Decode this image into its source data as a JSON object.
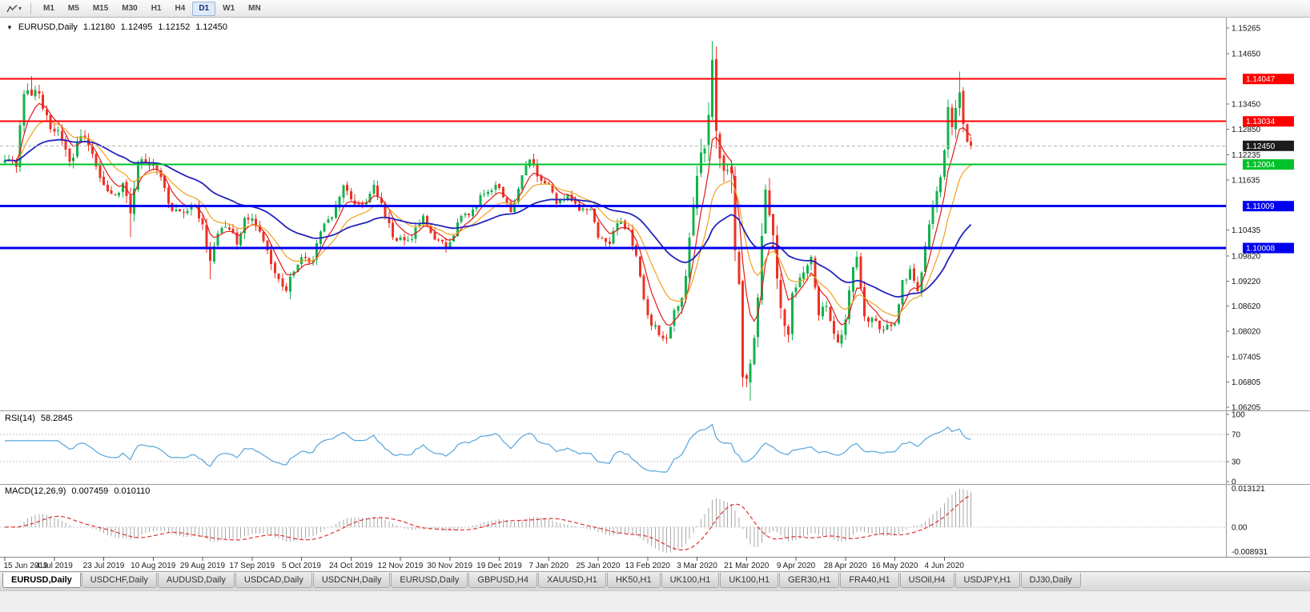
{
  "icons": {
    "dropdown_caret": "▾",
    "chart_collapse_marker": "▼"
  },
  "toolbar": {
    "timeframes": [
      {
        "label": "M1",
        "active": false
      },
      {
        "label": "M5",
        "active": false
      },
      {
        "label": "M15",
        "active": false
      },
      {
        "label": "M30",
        "active": false
      },
      {
        "label": "H1",
        "active": false
      },
      {
        "label": "H4",
        "active": false
      },
      {
        "label": "D1",
        "active": true
      },
      {
        "label": "W1",
        "active": false
      },
      {
        "label": "MN",
        "active": false
      }
    ]
  },
  "chart_header": {
    "symbol": "EURUSD,Daily",
    "open": "1.12180",
    "high": "1.12495",
    "low": "1.12152",
    "close": "1.12450"
  },
  "rsi_panel": {
    "name": "RSI(14)",
    "value": "58.2845",
    "period": 14,
    "axis_labels": [
      "100",
      "70",
      "30",
      "0"
    ],
    "axis_values": [
      100,
      70,
      30,
      0
    ],
    "levels": [
      70,
      30
    ],
    "line_color": "#56a5dc"
  },
  "macd_panel": {
    "name": "MACD(12,26,9)",
    "main_value": "0.007459",
    "signal_value": "0.010110",
    "fast": 12,
    "slow": 26,
    "signal": 9,
    "axis_labels": [
      "0.013121",
      "0.00",
      "-0.008931"
    ],
    "histogram_color": "#a8a8a8",
    "signal_color": "#e03030"
  },
  "tabs": [
    {
      "label": "EURUSD,Daily",
      "active": true
    },
    {
      "label": "USDCHF,Daily",
      "active": false
    },
    {
      "label": "AUDUSD,Daily",
      "active": false
    },
    {
      "label": "USDCAD,Daily",
      "active": false
    },
    {
      "label": "USDCNH,Daily",
      "active": false
    },
    {
      "label": "EURUSD,Daily",
      "active": false
    },
    {
      "label": "GBPUSD,H4",
      "active": false
    },
    {
      "label": "XAUUSD,H1",
      "active": false
    },
    {
      "label": "HK50,H1",
      "active": false
    },
    {
      "label": "UK100,H1",
      "active": false
    },
    {
      "label": "UK100,H1",
      "active": false
    },
    {
      "label": "GER30,H1",
      "active": false
    },
    {
      "label": "FRA40,H1",
      "active": false
    },
    {
      "label": "USOil,H4",
      "active": false
    },
    {
      "label": "USDJPY,H1",
      "active": false
    },
    {
      "label": "DJ30,Daily",
      "active": false
    }
  ],
  "chart_data": {
    "type": "candlestick",
    "symbol": "EURUSD",
    "timeframe": "Daily",
    "bar_count": 255,
    "seed": 9,
    "ylim": [
      1.06205,
      1.15265
    ],
    "up_color": "#14b14e",
    "down_color": "#ee3124",
    "price_axis_labels": [
      "1.15265",
      "1.14650",
      "1.13450",
      "1.12850",
      "1.12235",
      "1.11635",
      "1.10435",
      "1.09820",
      "1.09220",
      "1.08620",
      "1.08020",
      "1.07405",
      "1.06805",
      "1.06205"
    ],
    "marked_levels": [
      {
        "value": "1.14047",
        "price": 1.14047,
        "color": "#ff0000",
        "width": 2,
        "kind": "resistance-line"
      },
      {
        "value": "1.13034",
        "price": 1.13034,
        "color": "#ff0000",
        "width": 2,
        "kind": "resistance-line"
      },
      {
        "value": "1.12450",
        "price": 1.1245,
        "color": "#1c1c1c",
        "width": 1,
        "kind": "current-price"
      },
      {
        "value": "1.12004",
        "price": 1.12004,
        "color": "#00c22b",
        "width": 2,
        "kind": "support-line"
      },
      {
        "value": "1.11009",
        "price": 1.11009,
        "color": "#0000f0",
        "width": 3,
        "kind": "support-line"
      },
      {
        "value": "1.10008",
        "price": 1.10008,
        "color": "#0000f0",
        "width": 3,
        "kind": "support-line"
      }
    ],
    "moving_averages": [
      {
        "period": 6,
        "color": "#e21a1a",
        "width": 1.2,
        "name": "ma-fast"
      },
      {
        "period": 14,
        "color": "#efa21c",
        "width": 1.2,
        "name": "ma-mid"
      },
      {
        "period": 40,
        "color": "#2424bb",
        "width": 1.8,
        "name": "ma-slow"
      }
    ],
    "date_labels": [
      "15 Jun 2019",
      "4 Jul 2019",
      "23 Jul 2019",
      "10 Aug 2019",
      "29 Aug 2019",
      "17 Sep 2019",
      "5 Oct 2019",
      "24 Oct 2019",
      "12 Nov 2019",
      "30 Nov 2019",
      "19 Dec 2019",
      "7 Jan 2020",
      "25 Jan 2020",
      "13 Feb 2020",
      "3 Mar 2020",
      "21 Mar 2020",
      "9 Apr 2020",
      "28 Apr 2020",
      "16 May 2020",
      "4 Jun 2020"
    ],
    "date_label_interval_bars": 13,
    "anchors": [
      [
        0,
        1.121,
        0.0035
      ],
      [
        3,
        1.1195,
        0.0035
      ],
      [
        4,
        1.1294,
        0.0038
      ],
      [
        5,
        1.1369,
        0.004
      ],
      [
        7,
        1.1365,
        0.0045
      ],
      [
        9,
        1.137,
        0.004
      ],
      [
        12,
        1.1285,
        0.004
      ],
      [
        14,
        1.1282,
        0.0038
      ],
      [
        17,
        1.1207,
        0.0038
      ],
      [
        20,
        1.1268,
        0.0038
      ],
      [
        23,
        1.1225,
        0.0035
      ],
      [
        26,
        1.1151,
        0.0035
      ],
      [
        29,
        1.1128,
        0.0035
      ],
      [
        31,
        1.1156,
        0.0035
      ],
      [
        33,
        1.1084,
        0.0045
      ],
      [
        35,
        1.1204,
        0.004
      ],
      [
        38,
        1.1198,
        0.0035
      ],
      [
        41,
        1.117,
        0.0035
      ],
      [
        44,
        1.109,
        0.0035
      ],
      [
        47,
        1.1086,
        0.0035
      ],
      [
        50,
        1.1101,
        0.0035
      ],
      [
        52,
        1.1057,
        0.0035
      ],
      [
        54,
        1.097,
        0.0038
      ],
      [
        56,
        1.1035,
        0.0035
      ],
      [
        59,
        1.1045,
        0.0032
      ],
      [
        61,
        1.101,
        0.0032
      ],
      [
        63,
        1.1073,
        0.0032
      ],
      [
        65,
        1.1072,
        0.0032
      ],
      [
        68,
        1.1017,
        0.0032
      ],
      [
        71,
        1.0941,
        0.0032
      ],
      [
        74,
        1.0899,
        0.0032
      ],
      [
        75,
        1.0932,
        0.0036
      ],
      [
        78,
        1.0979,
        0.0032
      ],
      [
        81,
        1.097,
        0.0032
      ],
      [
        83,
        1.104,
        0.0032
      ],
      [
        86,
        1.1074,
        0.0032
      ],
      [
        89,
        1.115,
        0.0032
      ],
      [
        92,
        1.1105,
        0.0032
      ],
      [
        95,
        1.111,
        0.003
      ],
      [
        97,
        1.1152,
        0.003
      ],
      [
        100,
        1.1074,
        0.003
      ],
      [
        103,
        1.1018,
        0.003
      ],
      [
        107,
        1.1022,
        0.0028
      ],
      [
        110,
        1.1078,
        0.0028
      ],
      [
        113,
        1.1021,
        0.0028
      ],
      [
        116,
        1.1001,
        0.0028
      ],
      [
        120,
        1.1077,
        0.0028
      ],
      [
        123,
        1.1093,
        0.0028
      ],
      [
        126,
        1.113,
        0.0028
      ],
      [
        129,
        1.1152,
        0.0028
      ],
      [
        131,
        1.1122,
        0.0028
      ],
      [
        133,
        1.1087,
        0.0028
      ],
      [
        136,
        1.1175,
        0.0028
      ],
      [
        138,
        1.1212,
        0.003
      ],
      [
        140,
        1.1172,
        0.003
      ],
      [
        143,
        1.1153,
        0.0028
      ],
      [
        145,
        1.1106,
        0.0028
      ],
      [
        148,
        1.1128,
        0.0026
      ],
      [
        151,
        1.109,
        0.0026
      ],
      [
        154,
        1.1093,
        0.0026
      ],
      [
        156,
        1.1026,
        0.0026
      ],
      [
        159,
        1.101,
        0.0026
      ],
      [
        161,
        1.106,
        0.0026
      ],
      [
        164,
        1.1045,
        0.0026
      ],
      [
        166,
        1.0983,
        0.0026
      ],
      [
        169,
        1.084,
        0.0028
      ],
      [
        172,
        1.0792,
        0.0028
      ],
      [
        174,
        1.0785,
        0.003
      ],
      [
        176,
        1.0853,
        0.004
      ],
      [
        178,
        1.0881,
        0.005
      ],
      [
        180,
        1.1026,
        0.006
      ],
      [
        182,
        1.1173,
        0.007
      ],
      [
        184,
        1.1239,
        0.008
      ],
      [
        186,
        1.145,
        0.011
      ],
      [
        187,
        1.1281,
        0.012
      ],
      [
        189,
        1.1185,
        0.011
      ],
      [
        191,
        1.118,
        0.011
      ],
      [
        192,
        1.0995,
        0.011
      ],
      [
        193,
        1.0915,
        0.011
      ],
      [
        194,
        1.0692,
        0.011
      ],
      [
        195,
        1.0688,
        0.01
      ],
      [
        196,
        1.0725,
        0.0095
      ],
      [
        197,
        1.0786,
        0.009
      ],
      [
        198,
        1.0882,
        0.0085
      ],
      [
        199,
        1.103,
        0.008
      ],
      [
        200,
        1.114,
        0.0075
      ],
      [
        202,
        1.1031,
        0.0065
      ],
      [
        204,
        1.0857,
        0.006
      ],
      [
        206,
        1.0793,
        0.0055
      ],
      [
        207,
        1.0893,
        0.005
      ],
      [
        209,
        1.093,
        0.0045
      ],
      [
        212,
        1.098,
        0.004
      ],
      [
        214,
        1.084,
        0.004
      ],
      [
        216,
        1.0862,
        0.0036
      ],
      [
        219,
        1.0775,
        0.0036
      ],
      [
        221,
        1.083,
        0.0036
      ],
      [
        223,
        1.0955,
        0.0036
      ],
      [
        224,
        1.098,
        0.0034
      ],
      [
        226,
        1.0837,
        0.0034
      ],
      [
        228,
        1.0834,
        0.0032
      ],
      [
        230,
        1.0807,
        0.003
      ],
      [
        232,
        1.0817,
        0.003
      ],
      [
        234,
        1.082,
        0.003
      ],
      [
        236,
        1.0924,
        0.0032
      ],
      [
        238,
        1.095,
        0.0032
      ],
      [
        240,
        1.0898,
        0.0032
      ],
      [
        242,
        1.1006,
        0.0034
      ],
      [
        244,
        1.1101,
        0.0036
      ],
      [
        246,
        1.117,
        0.004
      ],
      [
        247,
        1.1234,
        0.0045
      ],
      [
        248,
        1.1337,
        0.005
      ],
      [
        249,
        1.1289,
        0.005
      ],
      [
        251,
        1.1373,
        0.0055
      ],
      [
        252,
        1.1297,
        0.005
      ],
      [
        253,
        1.1254,
        0.0045
      ],
      [
        254,
        1.1245,
        0.004
      ]
    ],
    "spikes": [
      {
        "i": 7,
        "h": 1.1412
      },
      {
        "i": 33,
        "l": 1.1027
      },
      {
        "i": 54,
        "l": 1.0926
      },
      {
        "i": 75,
        "l": 1.0879
      },
      {
        "i": 174,
        "l": 1.0777
      },
      {
        "i": 186,
        "h": 1.1495
      },
      {
        "i": 196,
        "l": 1.0636
      },
      {
        "i": 251,
        "h": 1.1422
      }
    ]
  }
}
